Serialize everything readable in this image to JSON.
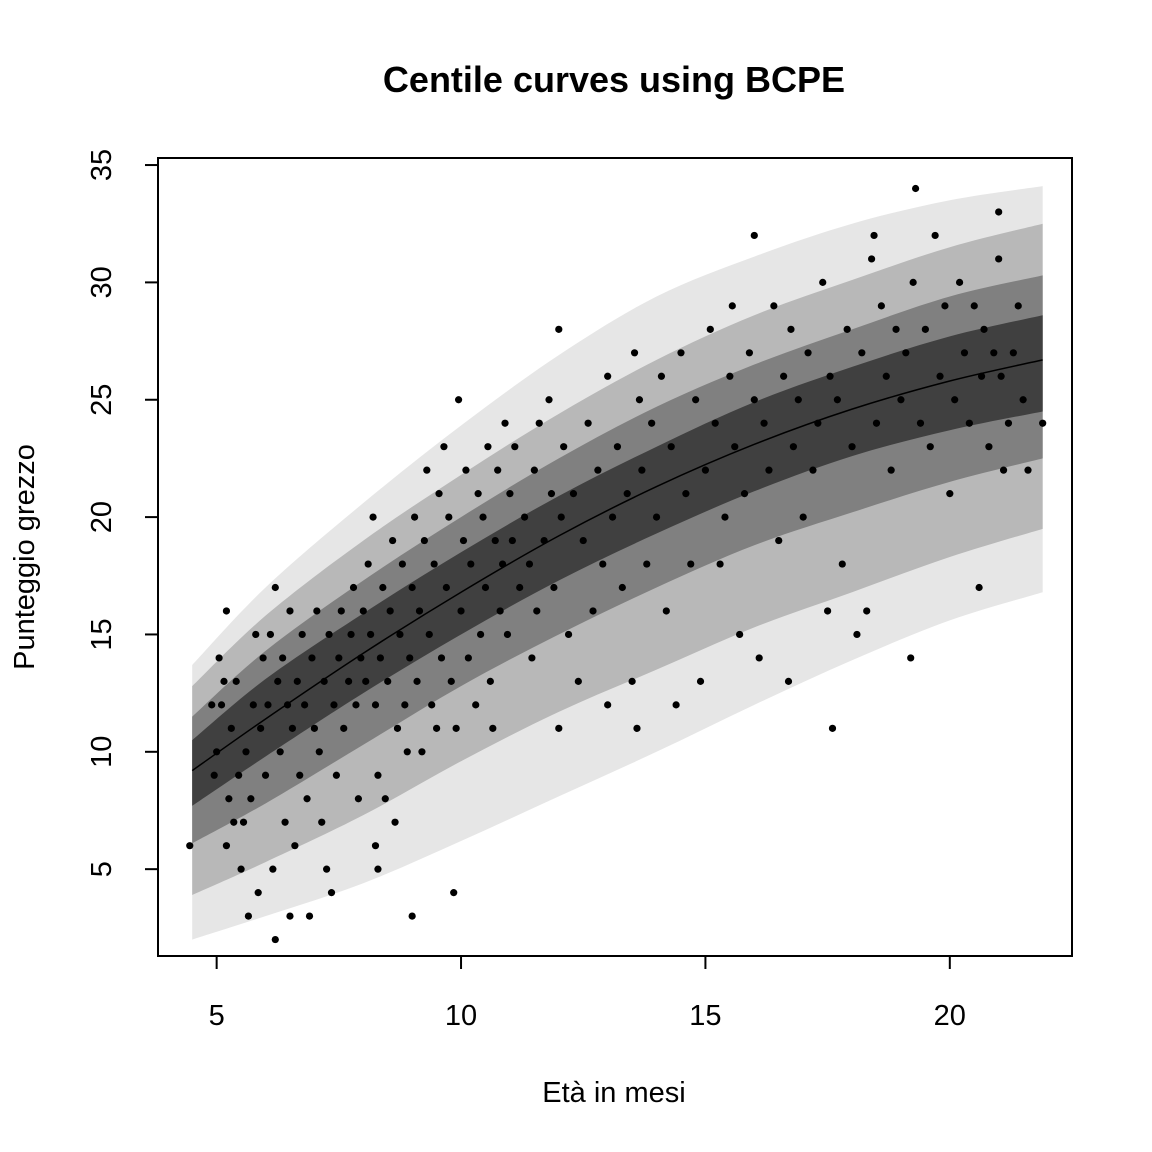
{
  "chart_data": {
    "type": "scatter",
    "title": "Centile curves using BCPE",
    "xlabel": "Età in mesi",
    "ylabel": "Punteggio grezzo",
    "xlim": [
      3.8,
      22.5
    ],
    "ylim": [
      1.3,
      35.3
    ],
    "x_ticks": [
      5,
      10,
      15,
      20
    ],
    "x_tick_labels": [
      "5",
      "10",
      "15",
      "20"
    ],
    "y_ticks": [
      5,
      10,
      15,
      20,
      25,
      30,
      35
    ],
    "y_tick_labels": [
      "5",
      "10",
      "15",
      "20",
      "25",
      "30",
      "35"
    ],
    "grid": false,
    "legend": "none",
    "bands": [
      {
        "fill": "#e6e6e6",
        "x": [
          4.5,
          6,
          8,
          10,
          12,
          14,
          16,
          18,
          20,
          21.9
        ],
        "lower": [
          2.0,
          3.0,
          4.4,
          6.2,
          8.1,
          10.0,
          12.0,
          13.9,
          15.6,
          16.8
        ],
        "upper": [
          13.7,
          17.0,
          20.6,
          23.9,
          26.9,
          29.4,
          31.1,
          32.5,
          33.5,
          34.1
        ]
      },
      {
        "fill": "#b8b8b8",
        "x": [
          4.5,
          6,
          8,
          10,
          12,
          14,
          16,
          18,
          20,
          21.9
        ],
        "lower": [
          3.9,
          5.3,
          7.3,
          9.6,
          11.7,
          13.5,
          15.3,
          16.8,
          18.3,
          19.5
        ],
        "upper": [
          12.8,
          15.8,
          19.0,
          21.8,
          24.4,
          26.7,
          28.6,
          30.1,
          31.5,
          32.5
        ]
      },
      {
        "fill": "#808080",
        "x": [
          4.5,
          6,
          8,
          10,
          12,
          14,
          16,
          18,
          20,
          21.9
        ],
        "lower": [
          6.1,
          7.8,
          10.3,
          12.8,
          15.0,
          17.0,
          18.8,
          20.2,
          21.5,
          22.5
        ],
        "upper": [
          11.5,
          14.3,
          17.3,
          20.0,
          22.5,
          24.7,
          26.5,
          28.0,
          29.4,
          30.3
        ]
      },
      {
        "fill": "#404040",
        "x": [
          4.5,
          6,
          8,
          10,
          12,
          14,
          16,
          18,
          20,
          21.9
        ],
        "lower": [
          7.7,
          9.8,
          12.5,
          15.0,
          17.3,
          19.3,
          21.1,
          22.6,
          23.7,
          24.5
        ],
        "upper": [
          10.5,
          13.1,
          15.9,
          18.5,
          20.9,
          23.0,
          24.9,
          26.4,
          27.7,
          28.6
        ]
      }
    ],
    "median": {
      "x": [
        4.5,
        6,
        8,
        10,
        12,
        14,
        16,
        18,
        20,
        21.9
      ],
      "y": [
        9.2,
        11.4,
        14.2,
        16.8,
        19.2,
        21.3,
        23.1,
        24.6,
        25.8,
        26.7
      ]
    },
    "points": [
      [
        4.45,
        6
      ],
      [
        4.9,
        12
      ],
      [
        4.95,
        9
      ],
      [
        5.0,
        10
      ],
      [
        5.05,
        14
      ],
      [
        5.1,
        12
      ],
      [
        5.15,
        13
      ],
      [
        5.2,
        16
      ],
      [
        5.2,
        6
      ],
      [
        5.25,
        8
      ],
      [
        5.3,
        11
      ],
      [
        5.35,
        7
      ],
      [
        5.4,
        13
      ],
      [
        5.45,
        9
      ],
      [
        5.5,
        5
      ],
      [
        5.55,
        7
      ],
      [
        5.6,
        10
      ],
      [
        5.65,
        3
      ],
      [
        5.7,
        8
      ],
      [
        5.75,
        12
      ],
      [
        5.8,
        15
      ],
      [
        5.85,
        4
      ],
      [
        5.9,
        11
      ],
      [
        5.95,
        14
      ],
      [
        6.0,
        9
      ],
      [
        6.05,
        12
      ],
      [
        6.1,
        15
      ],
      [
        6.15,
        5
      ],
      [
        6.2,
        2
      ],
      [
        6.2,
        17
      ],
      [
        6.25,
        13
      ],
      [
        6.3,
        10
      ],
      [
        6.35,
        14
      ],
      [
        6.4,
        7
      ],
      [
        6.45,
        12
      ],
      [
        6.5,
        3
      ],
      [
        6.5,
        16
      ],
      [
        6.55,
        11
      ],
      [
        6.6,
        6
      ],
      [
        6.65,
        13
      ],
      [
        6.7,
        9
      ],
      [
        6.75,
        15
      ],
      [
        6.8,
        12
      ],
      [
        6.85,
        8
      ],
      [
        6.9,
        3
      ],
      [
        6.95,
        14
      ],
      [
        7.0,
        11
      ],
      [
        7.05,
        16
      ],
      [
        7.1,
        10
      ],
      [
        7.15,
        7
      ],
      [
        7.2,
        13
      ],
      [
        7.25,
        5
      ],
      [
        7.3,
        15
      ],
      [
        7.35,
        4
      ],
      [
        7.4,
        12
      ],
      [
        7.45,
        9
      ],
      [
        7.5,
        14
      ],
      [
        7.55,
        16
      ],
      [
        7.6,
        11
      ],
      [
        7.7,
        13
      ],
      [
        7.75,
        15
      ],
      [
        7.8,
        17
      ],
      [
        7.85,
        12
      ],
      [
        7.9,
        8
      ],
      [
        7.95,
        14
      ],
      [
        8.0,
        16
      ],
      [
        8.05,
        13
      ],
      [
        8.1,
        18
      ],
      [
        8.15,
        15
      ],
      [
        8.2,
        20
      ],
      [
        8.25,
        6
      ],
      [
        8.25,
        12
      ],
      [
        8.3,
        9
      ],
      [
        8.3,
        5
      ],
      [
        8.35,
        14
      ],
      [
        8.4,
        17
      ],
      [
        8.45,
        8
      ],
      [
        8.5,
        13
      ],
      [
        8.55,
        16
      ],
      [
        8.6,
        19
      ],
      [
        8.65,
        7
      ],
      [
        8.7,
        11
      ],
      [
        8.75,
        15
      ],
      [
        8.8,
        18
      ],
      [
        8.85,
        12
      ],
      [
        8.9,
        10
      ],
      [
        8.95,
        14
      ],
      [
        9.0,
        3
      ],
      [
        9.0,
        17
      ],
      [
        9.05,
        20
      ],
      [
        9.1,
        13
      ],
      [
        9.15,
        16
      ],
      [
        9.2,
        10
      ],
      [
        9.25,
        19
      ],
      [
        9.3,
        22
      ],
      [
        9.35,
        15
      ],
      [
        9.4,
        12
      ],
      [
        9.45,
        18
      ],
      [
        9.5,
        11
      ],
      [
        9.55,
        21
      ],
      [
        9.6,
        14
      ],
      [
        9.65,
        23
      ],
      [
        9.7,
        17
      ],
      [
        9.75,
        20
      ],
      [
        9.8,
        13
      ],
      [
        9.85,
        4
      ],
      [
        9.9,
        11
      ],
      [
        9.95,
        25
      ],
      [
        10.0,
        16
      ],
      [
        10.05,
        19
      ],
      [
        10.1,
        22
      ],
      [
        10.15,
        14
      ],
      [
        10.2,
        18
      ],
      [
        10.3,
        12
      ],
      [
        10.35,
        21
      ],
      [
        10.4,
        15
      ],
      [
        10.45,
        20
      ],
      [
        10.5,
        17
      ],
      [
        10.55,
        23
      ],
      [
        10.6,
        13
      ],
      [
        10.65,
        11
      ],
      [
        10.7,
        19
      ],
      [
        10.75,
        22
      ],
      [
        10.8,
        16
      ],
      [
        10.85,
        18
      ],
      [
        10.9,
        24
      ],
      [
        10.95,
        15
      ],
      [
        11.0,
        21
      ],
      [
        11.05,
        19
      ],
      [
        11.1,
        23
      ],
      [
        11.2,
        17
      ],
      [
        11.3,
        20
      ],
      [
        11.4,
        18
      ],
      [
        11.45,
        14
      ],
      [
        11.5,
        22
      ],
      [
        11.55,
        16
      ],
      [
        11.6,
        24
      ],
      [
        11.7,
        19
      ],
      [
        11.8,
        25
      ],
      [
        11.85,
        21
      ],
      [
        11.9,
        17
      ],
      [
        12.0,
        28
      ],
      [
        12.0,
        11
      ],
      [
        12.05,
        20
      ],
      [
        12.1,
        23
      ],
      [
        12.2,
        15
      ],
      [
        12.3,
        21
      ],
      [
        12.4,
        13
      ],
      [
        12.5,
        19
      ],
      [
        12.6,
        24
      ],
      [
        12.7,
        16
      ],
      [
        12.8,
        22
      ],
      [
        12.9,
        18
      ],
      [
        13.0,
        12
      ],
      [
        13.0,
        26
      ],
      [
        13.1,
        20
      ],
      [
        13.2,
        23
      ],
      [
        13.3,
        17
      ],
      [
        13.4,
        21
      ],
      [
        13.5,
        13
      ],
      [
        13.55,
        27
      ],
      [
        13.6,
        11
      ],
      [
        13.65,
        25
      ],
      [
        13.7,
        22
      ],
      [
        13.8,
        18
      ],
      [
        13.9,
        24
      ],
      [
        14.0,
        20
      ],
      [
        14.1,
        26
      ],
      [
        14.2,
        16
      ],
      [
        14.3,
        23
      ],
      [
        14.4,
        12
      ],
      [
        14.5,
        27
      ],
      [
        14.6,
        21
      ],
      [
        14.7,
        18
      ],
      [
        14.8,
        25
      ],
      [
        14.9,
        13
      ],
      [
        15.0,
        22
      ],
      [
        15.1,
        28
      ],
      [
        15.2,
        24
      ],
      [
        15.3,
        18
      ],
      [
        15.4,
        20
      ],
      [
        15.5,
        26
      ],
      [
        15.55,
        29
      ],
      [
        15.6,
        23
      ],
      [
        15.7,
        15
      ],
      [
        15.8,
        21
      ],
      [
        15.9,
        27
      ],
      [
        16.0,
        32
      ],
      [
        16.0,
        25
      ],
      [
        16.1,
        14
      ],
      [
        16.2,
        24
      ],
      [
        16.3,
        22
      ],
      [
        16.4,
        29
      ],
      [
        16.5,
        19
      ],
      [
        16.6,
        26
      ],
      [
        16.7,
        13
      ],
      [
        16.75,
        28
      ],
      [
        16.8,
        23
      ],
      [
        16.9,
        25
      ],
      [
        17.0,
        20
      ],
      [
        17.1,
        27
      ],
      [
        17.2,
        22
      ],
      [
        17.3,
        24
      ],
      [
        17.4,
        30
      ],
      [
        17.5,
        16
      ],
      [
        17.55,
        26
      ],
      [
        17.6,
        11
      ],
      [
        17.7,
        25
      ],
      [
        17.8,
        18
      ],
      [
        17.9,
        28
      ],
      [
        18.0,
        23
      ],
      [
        18.1,
        15
      ],
      [
        18.2,
        27
      ],
      [
        18.3,
        16
      ],
      [
        18.4,
        31
      ],
      [
        18.45,
        32
      ],
      [
        18.5,
        24
      ],
      [
        18.6,
        29
      ],
      [
        18.7,
        26
      ],
      [
        18.8,
        22
      ],
      [
        18.9,
        28
      ],
      [
        19.0,
        25
      ],
      [
        19.1,
        27
      ],
      [
        19.2,
        14
      ],
      [
        19.25,
        30
      ],
      [
        19.3,
        34
      ],
      [
        19.4,
        24
      ],
      [
        19.5,
        28
      ],
      [
        19.6,
        23
      ],
      [
        19.7,
        32
      ],
      [
        19.8,
        26
      ],
      [
        19.9,
        29
      ],
      [
        20.0,
        21
      ],
      [
        20.1,
        25
      ],
      [
        20.2,
        30
      ],
      [
        20.3,
        27
      ],
      [
        20.4,
        24
      ],
      [
        20.5,
        29
      ],
      [
        20.6,
        17
      ],
      [
        20.65,
        26
      ],
      [
        20.7,
        28
      ],
      [
        20.8,
        23
      ],
      [
        20.9,
        27
      ],
      [
        21.0,
        33
      ],
      [
        21.0,
        31
      ],
      [
        21.05,
        26
      ],
      [
        21.1,
        22
      ],
      [
        21.2,
        24
      ],
      [
        21.3,
        27
      ],
      [
        21.4,
        29
      ],
      [
        21.5,
        25
      ],
      [
        21.6,
        22
      ],
      [
        21.9,
        24
      ]
    ]
  }
}
